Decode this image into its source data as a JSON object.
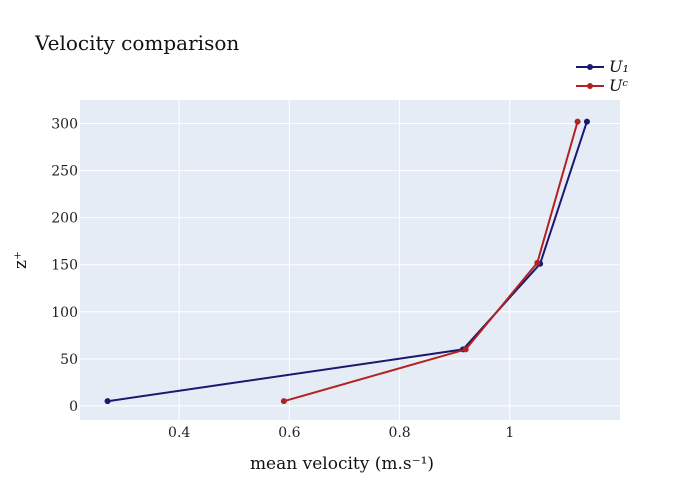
{
  "chart_data": {
    "type": "line",
    "title": "Velocity comparison",
    "xlabel": "mean velocity (m.s⁻¹)",
    "ylabel": "z⁺",
    "xlim": [
      0.22,
      1.2
    ],
    "ylim": [
      -15,
      325
    ],
    "x_ticks": [
      0.4,
      0.6,
      0.8,
      1
    ],
    "x_tick_labels": [
      "0.4",
      "0.6",
      "0.8",
      "1"
    ],
    "y_ticks": [
      0,
      50,
      100,
      150,
      200,
      250,
      300
    ],
    "y_tick_labels": [
      "0",
      "50",
      "100",
      "150",
      "200",
      "250",
      "300"
    ],
    "grid": true,
    "legend_position": "top-right",
    "series": [
      {
        "name": "U₁",
        "color": "#191970",
        "x": [
          0.27,
          0.915,
          1.055,
          1.14
        ],
        "y": [
          5,
          60,
          151,
          302
        ]
      },
      {
        "name": "Uᶜ",
        "color": "#b22222",
        "x": [
          0.59,
          0.92,
          1.05,
          1.123
        ],
        "y": [
          5,
          60,
          152,
          302
        ]
      }
    ]
  }
}
